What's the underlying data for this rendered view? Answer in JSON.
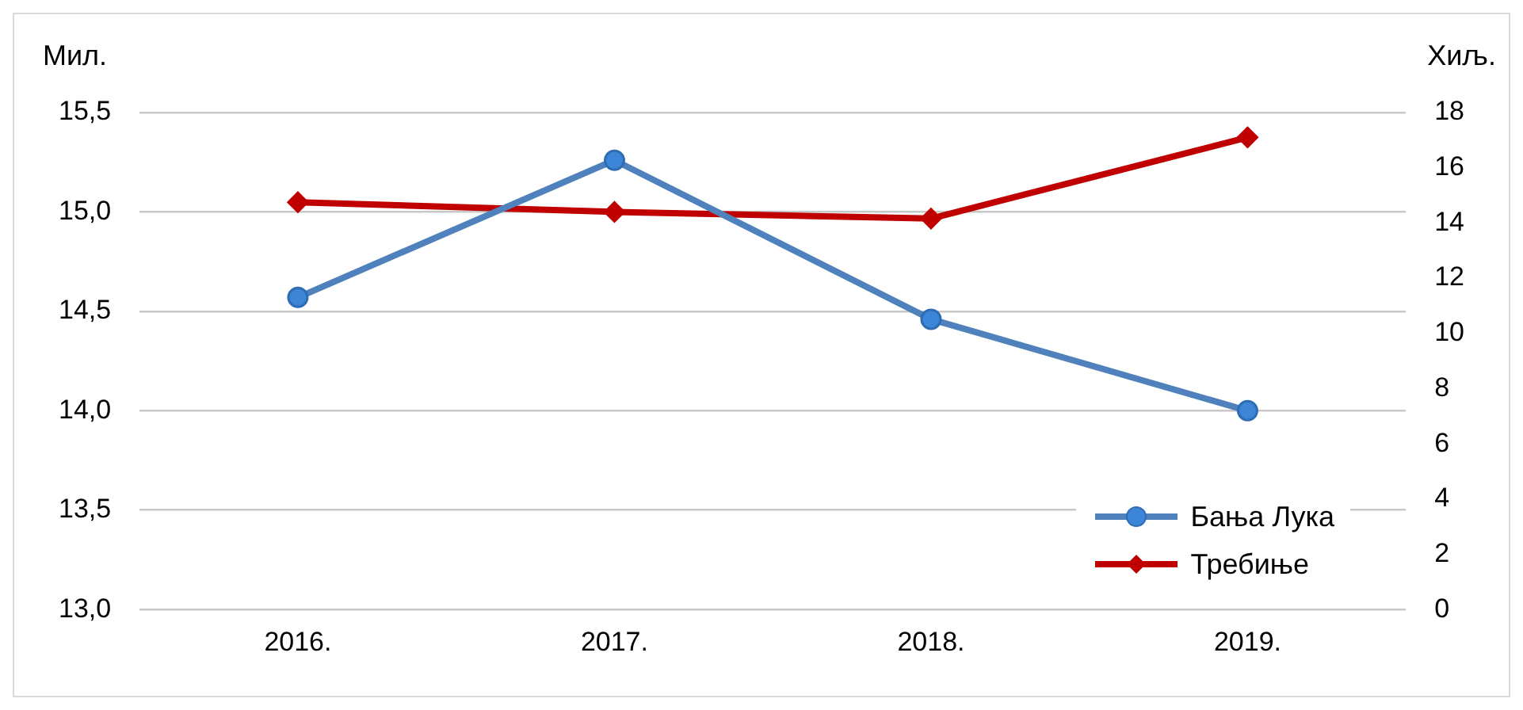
{
  "chart_data": {
    "type": "line",
    "ylabel": "Мил.",
    "y2label": "Хиљ.",
    "categories": [
      "2016.",
      "2017.",
      "2018.",
      "2019."
    ],
    "series": [
      {
        "name": "Бања Лука",
        "color": "#4f81bd",
        "marker": "circle",
        "values": [
          14.57,
          15.26,
          14.46,
          14.0
        ]
      },
      {
        "name": "Требиње",
        "color": "#c00000",
        "marker": "diamond",
        "axis": "y2",
        "values": [
          14.75,
          14.4,
          14.16,
          17.1
        ]
      }
    ],
    "ylim": [
      13.0,
      15.5
    ],
    "yticks": [
      {
        "value": 13.0,
        "label": "13,0"
      },
      {
        "value": 13.5,
        "label": "13,5"
      },
      {
        "value": 14.0,
        "label": "14,0"
      },
      {
        "value": 14.5,
        "label": "14,5"
      },
      {
        "value": 15.0,
        "label": "15,0"
      },
      {
        "value": 15.5,
        "label": "15,5"
      }
    ],
    "y2lim": [
      0,
      18
    ],
    "y2ticks": [
      0,
      2,
      4,
      6,
      8,
      10,
      12,
      14,
      16,
      18
    ],
    "grid": "y",
    "legend": "bottom right",
    "line_style": "solid"
  }
}
